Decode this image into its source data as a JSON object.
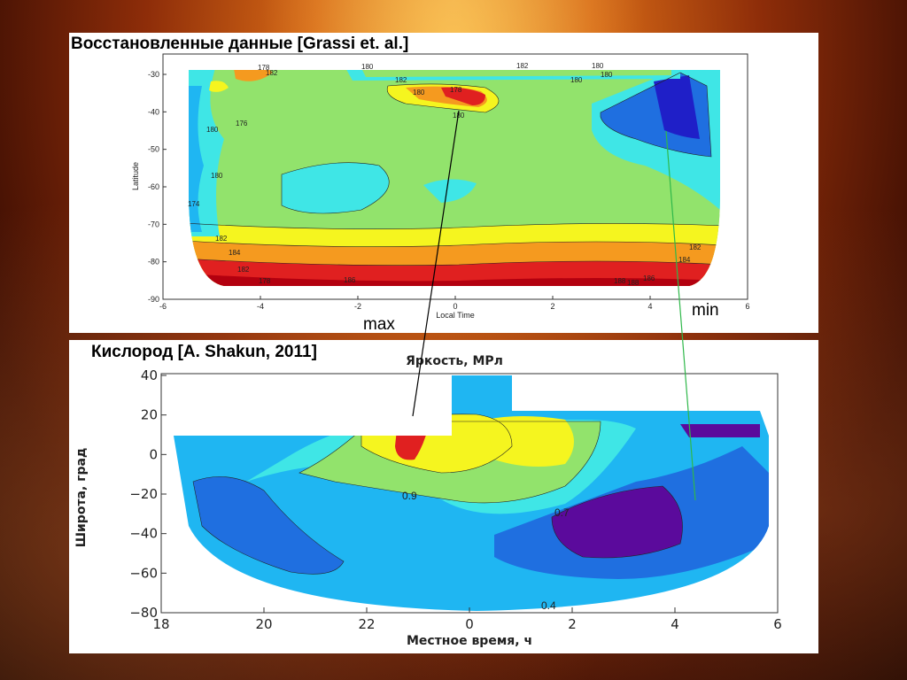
{
  "panels": {
    "top_title": "Восстановленные данные [Grassi et. al.]",
    "bottom_title": "Кислород [A. Shakun, 2011]"
  },
  "annotations": {
    "max": "max",
    "min": "min"
  },
  "colors": {
    "violet": "#5b0a9c",
    "darkblue": "#1f1fc8",
    "blue": "#1f6fe0",
    "lightblue": "#1fb6f2",
    "cyan": "#3fe6e6",
    "green": "#92e36c",
    "yellow": "#f5f51f",
    "orange": "#f59a1f",
    "red": "#e02020",
    "darkred": "#b3000f",
    "connector_black": "#000000",
    "connector_green": "#2fb84a"
  },
  "chart_data": [
    {
      "type": "heatmap",
      "xlabel": "Local Time",
      "ylabel": "Latitude",
      "xticks": [
        "-6",
        "-4",
        "-2",
        "0",
        "2",
        "4",
        "6"
      ],
      "yticks": [
        "-30",
        "-40",
        "-50",
        "-60",
        "-70",
        "-80",
        "-90"
      ],
      "xlim": [
        -6,
        6
      ],
      "ylim": [
        -90,
        -25
      ],
      "contour_labels": [
        "178",
        "182",
        "180",
        "180",
        "178",
        "182",
        "180",
        "182",
        "180",
        "180",
        "180",
        "174",
        "180",
        "180",
        "176",
        "182",
        "184",
        "182",
        "178",
        "186",
        "188",
        "188",
        "186",
        "184",
        "182"
      ]
    },
    {
      "type": "heatmap",
      "title": "Яркость, МРл",
      "xlabel": "Местное время, ч",
      "ylabel": "Широта, град",
      "xticks": [
        "18",
        "20",
        "22",
        "0",
        "2",
        "4",
        "6"
      ],
      "yticks": [
        "40",
        "20",
        "0",
        "−20",
        "−40",
        "−60",
        "−80"
      ],
      "xlim": [
        18,
        30
      ],
      "ylim": [
        -80,
        40
      ],
      "contour_labels": [
        "0.9",
        "0.7",
        "0.4"
      ]
    }
  ]
}
